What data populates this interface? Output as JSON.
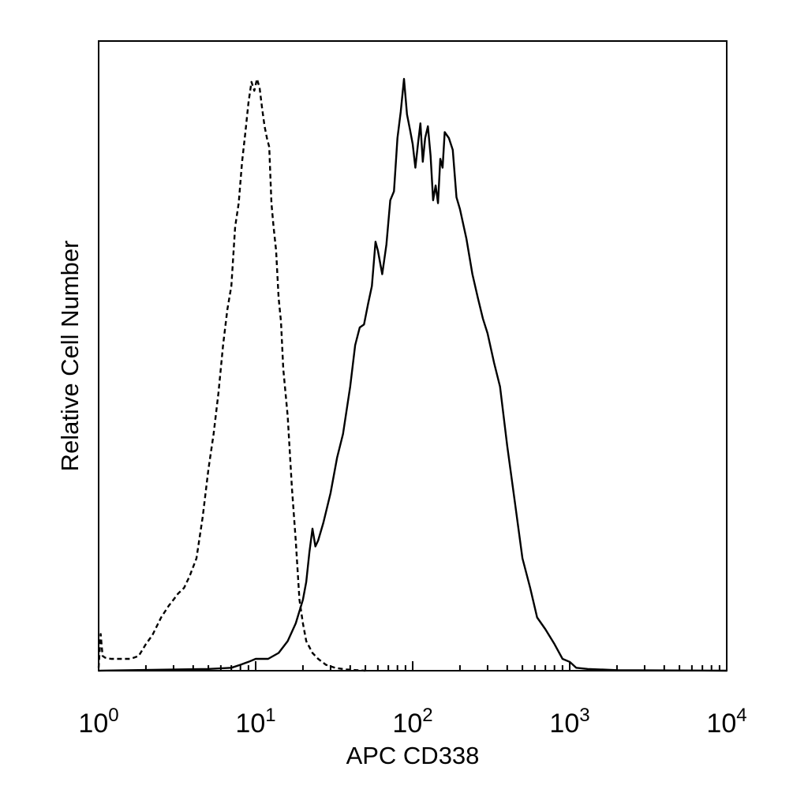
{
  "chart_data": {
    "type": "line",
    "xlabel": "APC CD338",
    "ylabel": "Relative Cell Number",
    "xscale": "log",
    "xlim": [
      1,
      10000
    ],
    "ylim": [
      0,
      100
    ],
    "grid": false,
    "x_ticks": [
      {
        "value": 1,
        "base": "10",
        "exp": "0"
      },
      {
        "value": 10,
        "base": "10",
        "exp": "1"
      },
      {
        "value": 100,
        "base": "10",
        "exp": "2"
      },
      {
        "value": 1000,
        "base": "10",
        "exp": "3"
      },
      {
        "value": 10000,
        "base": "10",
        "exp": "4"
      }
    ],
    "series": [
      {
        "style": "dashed",
        "color": "#000000",
        "x": [
          1.0,
          1.03,
          1.06,
          1.1,
          1.2,
          1.4,
          1.6,
          1.8,
          2.0,
          2.2,
          2.5,
          2.8,
          3.0,
          3.2,
          3.5,
          3.8,
          4.2,
          4.6,
          5.0,
          5.4,
          5.8,
          6.2,
          6.6,
          7.0,
          7.4,
          7.8,
          8.2,
          8.6,
          9.0,
          9.4,
          9.8,
          10.2,
          10.6,
          11.0,
          11.4,
          11.8,
          12.2,
          12.6,
          13.0,
          13.5,
          14.0,
          14.5,
          15.0,
          16.0,
          17.0,
          18.0,
          19.0,
          20.0,
          21.0,
          22.0,
          23.0,
          25.0,
          28.0,
          32.0,
          38.0,
          50.0
        ],
        "y": [
          0.5,
          6.2,
          2.5,
          2.2,
          2.0,
          2.0,
          2.0,
          2.5,
          4.5,
          6.0,
          9.0,
          11.0,
          12.0,
          13.0,
          14.0,
          16.0,
          19.0,
          26.0,
          34.0,
          40.0,
          47.0,
          55.0,
          61.0,
          65.0,
          75.0,
          79.0,
          86.0,
          91.0,
          96.0,
          99.5,
          98.0,
          100.0,
          98.5,
          95.0,
          92.0,
          90.0,
          88.5,
          79.0,
          75.0,
          71.0,
          63.0,
          59.0,
          51.0,
          43.0,
          31.0,
          22.0,
          12.0,
          8.0,
          5.0,
          4.0,
          3.0,
          2.0,
          1.0,
          0.5,
          0.2,
          0.0
        ]
      },
      {
        "style": "solid",
        "color": "#000000",
        "x": [
          1.0,
          5.0,
          7.0,
          8.0,
          9.0,
          10.0,
          12.0,
          14.0,
          16.0,
          18.0,
          20.0,
          21.0,
          22.0,
          23.0,
          24.0,
          25.0,
          27.0,
          30.0,
          33.0,
          36.0,
          40.0,
          43.0,
          46.0,
          49.0,
          52.0,
          55.0,
          58.0,
          60.0,
          64.0,
          68.0,
          72.0,
          76.0,
          80.0,
          84.0,
          88.0,
          92.0,
          96.0,
          100.0,
          104.0,
          108.0,
          112.0,
          116.0,
          120.0,
          125.0,
          130.0,
          135.0,
          140.0,
          145.0,
          150.0,
          155.0,
          160.0,
          170.0,
          180.0,
          190.0,
          200.0,
          220.0,
          240.0,
          260.0,
          280.0,
          300.0,
          330.0,
          360.0,
          400.0,
          450.0,
          500.0,
          560.0,
          620.0,
          700.0,
          800.0,
          900.0,
          1000.0,
          1100.0,
          1300.0,
          2000.0,
          10000.0
        ],
        "y": [
          0.0,
          0.3,
          0.5,
          1.0,
          1.5,
          2.0,
          2.0,
          3.0,
          5.0,
          8.0,
          12.0,
          15.0,
          20.0,
          24.0,
          21.0,
          22.0,
          25.0,
          30.0,
          36.0,
          40.0,
          48.0,
          55.0,
          58.0,
          58.5,
          62.0,
          65.0,
          72.5,
          71.0,
          67.0,
          72.0,
          79.5,
          81.0,
          90.0,
          94.5,
          100.0,
          94.0,
          91.5,
          89.0,
          85.0,
          89.0,
          92.5,
          86.0,
          90.0,
          92.0,
          87.0,
          79.5,
          82.0,
          79.0,
          86.5,
          85.0,
          91.0,
          90.0,
          88.0,
          80.0,
          78.0,
          73.0,
          67.0,
          63.0,
          59.5,
          57.0,
          52.0,
          48.0,
          38.0,
          28.0,
          19.0,
          14.0,
          9.0,
          7.0,
          4.5,
          2.0,
          1.5,
          0.5,
          0.3,
          0.1,
          0.0
        ]
      }
    ]
  }
}
